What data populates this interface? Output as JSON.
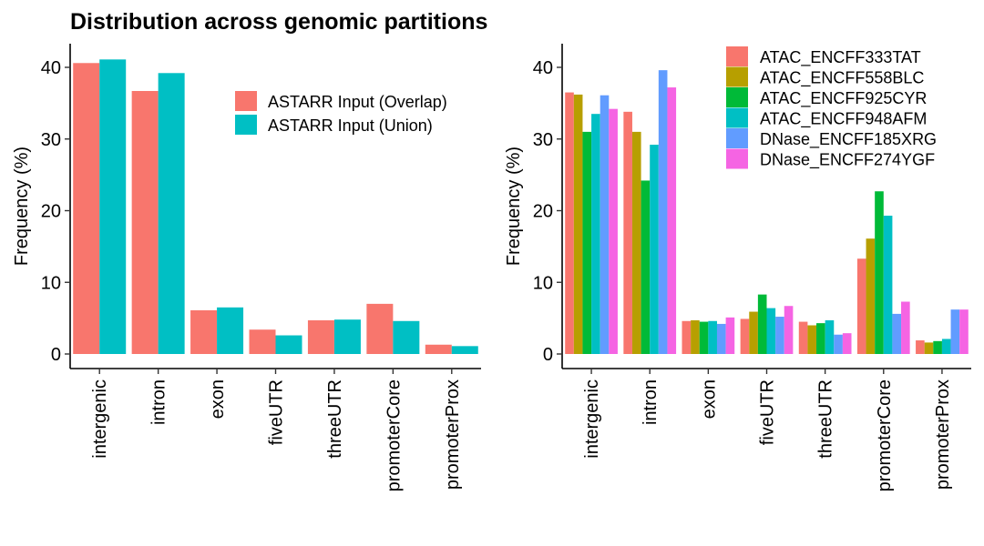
{
  "title": "Distribution across genomic partitions",
  "chart_data": [
    {
      "type": "bar",
      "categories": [
        "intergenic",
        "intron",
        "exon",
        "fiveUTR",
        "threeUTR",
        "promoterCore",
        "promoterProx"
      ],
      "ylabel": "Frequency (%)",
      "xlabel": "",
      "ylim": [
        0,
        42
      ],
      "yticks": [
        0,
        10,
        20,
        30,
        40
      ],
      "grid": false,
      "legend_position": "top-right",
      "series": [
        {
          "name": "ASTARR Input (Overlap)",
          "color": "#F8766D",
          "values": [
            40.6,
            36.7,
            6.1,
            3.4,
            4.7,
            7.0,
            1.3
          ]
        },
        {
          "name": "ASTARR Input (Union)",
          "color": "#00BFC4",
          "values": [
            41.1,
            39.2,
            6.5,
            2.6,
            4.8,
            4.6,
            1.1
          ]
        }
      ]
    },
    {
      "type": "bar",
      "categories": [
        "intergenic",
        "intron",
        "exon",
        "fiveUTR",
        "threeUTR",
        "promoterCore",
        "promoterProx"
      ],
      "ylabel": "Frequency (%)",
      "xlabel": "",
      "ylim": [
        0,
        42
      ],
      "yticks": [
        0,
        10,
        20,
        30,
        40
      ],
      "grid": false,
      "legend_position": "top-right",
      "series": [
        {
          "name": "ATAC_ENCFF333TAT",
          "color": "#F8766D",
          "values": [
            36.5,
            33.8,
            4.6,
            4.9,
            4.5,
            13.3,
            1.9
          ]
        },
        {
          "name": "ATAC_ENCFF558BLC",
          "color": "#B79F00",
          "values": [
            36.2,
            31.0,
            4.7,
            5.9,
            4.0,
            16.1,
            1.6
          ]
        },
        {
          "name": "ATAC_ENCFF925CYR",
          "color": "#00BA38",
          "values": [
            31.0,
            24.2,
            4.5,
            8.3,
            4.3,
            22.7,
            1.8
          ]
        },
        {
          "name": "ATAC_ENCFF948AFM",
          "color": "#00BFC4",
          "values": [
            33.5,
            29.2,
            4.6,
            6.4,
            4.7,
            19.3,
            2.1
          ]
        },
        {
          "name": "DNase_ENCFF185XRG",
          "color": "#619CFF",
          "values": [
            36.1,
            39.6,
            4.2,
            5.2,
            2.7,
            5.6,
            6.2
          ]
        },
        {
          "name": "DNase_ENCFF274YGF",
          "color": "#F564E3",
          "values": [
            34.2,
            37.2,
            5.1,
            6.7,
            2.9,
            7.3,
            6.2
          ]
        }
      ]
    }
  ]
}
